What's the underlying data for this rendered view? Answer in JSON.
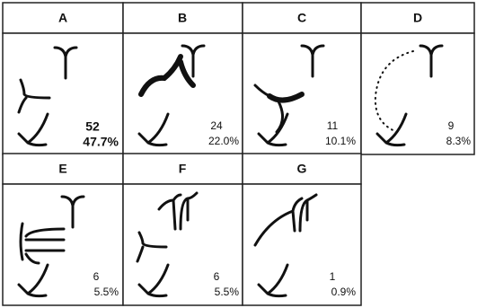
{
  "panels": [
    {
      "label": "A",
      "count": "52",
      "percent": "47.7%"
    },
    {
      "label": "B",
      "count": "24",
      "percent": "22.0%"
    },
    {
      "label": "C",
      "count": "11",
      "percent": "10.1%"
    },
    {
      "label": "D",
      "count": "9",
      "percent": "8.3%"
    },
    {
      "label": "E",
      "count": "6",
      "percent": "5.5%"
    },
    {
      "label": "F",
      "count": "6",
      "percent": "5.5%"
    },
    {
      "label": "G",
      "count": "1",
      "percent": "0.9%"
    }
  ]
}
